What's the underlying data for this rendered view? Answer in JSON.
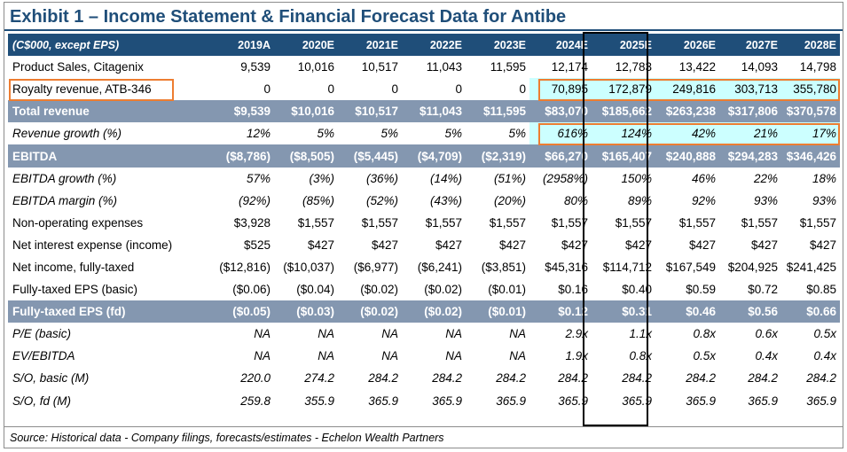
{
  "title": "Exhibit 1 – Income Statement & Financial Forecast Data for Antibe",
  "header": {
    "label": "(C$000, except EPS)",
    "years": [
      "2019A",
      "2020E",
      "2021E",
      "2022E",
      "2023E",
      "2024E",
      "2025E",
      "2026E",
      "2027E",
      "2028E"
    ]
  },
  "rows": [
    {
      "label": "Product Sales, Citagenix",
      "values": [
        "9,539",
        "10,016",
        "10,517",
        "11,043",
        "11,595",
        "12,174",
        "12,783",
        "13,422",
        "14,093",
        "14,798"
      ]
    },
    {
      "label": "Royalty revenue, ATB-346",
      "values": [
        "0",
        "0",
        "0",
        "0",
        "0",
        "70,895",
        "172,879",
        "249,816",
        "303,713",
        "355,780"
      ]
    },
    {
      "label": "Total revenue",
      "values": [
        "$9,539",
        "$10,016",
        "$10,517",
        "$11,043",
        "$11,595",
        "$83,070",
        "$185,662",
        "$263,238",
        "$317,806",
        "$370,578"
      ]
    },
    {
      "label": "Revenue growth (%)",
      "values": [
        "12%",
        "5%",
        "5%",
        "5%",
        "5%",
        "616%",
        "124%",
        "42%",
        "21%",
        "17%"
      ]
    },
    {
      "label": "EBITDA",
      "values": [
        "($8,786)",
        "($8,505)",
        "($5,445)",
        "($4,709)",
        "($2,319)",
        "$66,270",
        "$165,407",
        "$240,888",
        "$294,283",
        "$346,426"
      ]
    },
    {
      "label": "EBITDA growth (%)",
      "values": [
        "57%",
        "(3%)",
        "(36%)",
        "(14%)",
        "(51%)",
        "(2958%)",
        "150%",
        "46%",
        "22%",
        "18%"
      ]
    },
    {
      "label": "EBITDA margin (%)",
      "values": [
        "(92%)",
        "(85%)",
        "(52%)",
        "(43%)",
        "(20%)",
        "80%",
        "89%",
        "92%",
        "93%",
        "93%"
      ]
    },
    {
      "label": "Non-operating expenses",
      "values": [
        "$3,928",
        "$1,557",
        "$1,557",
        "$1,557",
        "$1,557",
        "$1,557",
        "$1,557",
        "$1,557",
        "$1,557",
        "$1,557"
      ]
    },
    {
      "label": "Net interest expense (income)",
      "values": [
        "$525",
        "$427",
        "$427",
        "$427",
        "$427",
        "$427",
        "$427",
        "$427",
        "$427",
        "$427"
      ]
    },
    {
      "label": "Net income, fully-taxed",
      "values": [
        "($12,816)",
        "($10,037)",
        "($6,977)",
        "($6,241)",
        "($3,851)",
        "$45,316",
        "$114,712",
        "$167,549",
        "$204,925",
        "$241,425"
      ]
    },
    {
      "label": "Fully-taxed EPS (basic)",
      "values": [
        "($0.06)",
        "($0.04)",
        "($0.02)",
        "($0.02)",
        "($0.01)",
        "$0.16",
        "$0.40",
        "$0.59",
        "$0.72",
        "$0.85"
      ]
    },
    {
      "label": "Fully-taxed EPS (fd)",
      "values": [
        "($0.05)",
        "($0.03)",
        "($0.02)",
        "($0.02)",
        "($0.01)",
        "$0.12",
        "$0.31",
        "$0.46",
        "$0.56",
        "$0.66"
      ]
    },
    {
      "label": "P/E (basic)",
      "values": [
        "NA",
        "NA",
        "NA",
        "NA",
        "NA",
        "2.9x",
        "1.1x",
        "0.8x",
        "0.6x",
        "0.5x"
      ]
    },
    {
      "label": "EV/EBITDA",
      "values": [
        "NA",
        "NA",
        "NA",
        "NA",
        "NA",
        "1.9x",
        "0.8x",
        "0.5x",
        "0.4x",
        "0.4x"
      ]
    },
    {
      "label": "S/O, basic (M)",
      "values": [
        "220.0",
        "274.2",
        "284.2",
        "284.2",
        "284.2",
        "284.2",
        "284.2",
        "284.2",
        "284.2",
        "284.2"
      ]
    },
    {
      "label": "S/O, fd (M)",
      "values": [
        "259.8",
        "355.9",
        "365.9",
        "365.9",
        "365.9",
        "365.9",
        "365.9",
        "365.9",
        "365.9",
        "365.9"
      ]
    }
  ],
  "source": "Source: Historical data - Company filings, forecasts/estimates - Echelon Wealth Partners",
  "colors": {
    "header_bg": "#1f4e79",
    "subtotal_bg": "#8497b0",
    "highlight_fill": "#ccffff",
    "highlight_border": "#ed7d31",
    "focus_column_border": "#000000"
  }
}
